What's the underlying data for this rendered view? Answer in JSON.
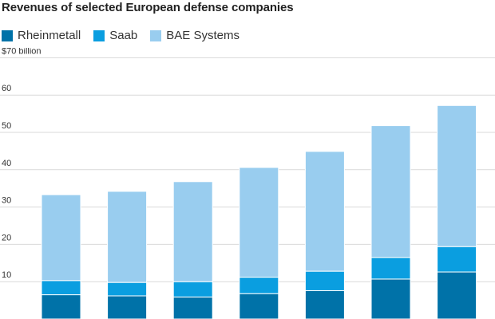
{
  "title": "Revenues of selected European defense companies",
  "legend": [
    {
      "name": "Rheinmetall",
      "color": "#0072a8"
    },
    {
      "name": "Saab",
      "color": "#0a9ee0"
    },
    {
      "name": "BAE Systems",
      "color": "#99cdef"
    }
  ],
  "chart_data": {
    "type": "bar",
    "stacked": true,
    "title": "Revenues of selected European defense companies",
    "xlabel": "",
    "ylabel": "",
    "ylim": [
      0,
      70
    ],
    "yticks": [
      10,
      20,
      30,
      40,
      50,
      60,
      70
    ],
    "ytick_labels": [
      "10",
      "20",
      "30",
      "40",
      "50",
      "60",
      "$70 billion"
    ],
    "grid": true,
    "legend_position": "top-left",
    "categories": [
      "",
      "",
      "",
      "",
      "",
      "",
      ""
    ],
    "series": [
      {
        "name": "Rheinmetall",
        "color": "#0072a8",
        "values": [
          6.5,
          6.2,
          5.9,
          6.8,
          7.6,
          10.7,
          12.6
        ]
      },
      {
        "name": "Saab",
        "color": "#0a9ee0",
        "values": [
          3.8,
          3.6,
          4.1,
          4.4,
          5.2,
          5.8,
          6.8
        ]
      },
      {
        "name": "BAE Systems",
        "color": "#99cdef",
        "values": [
          23.0,
          24.4,
          26.8,
          29.4,
          32.1,
          35.3,
          37.8
        ]
      }
    ]
  }
}
